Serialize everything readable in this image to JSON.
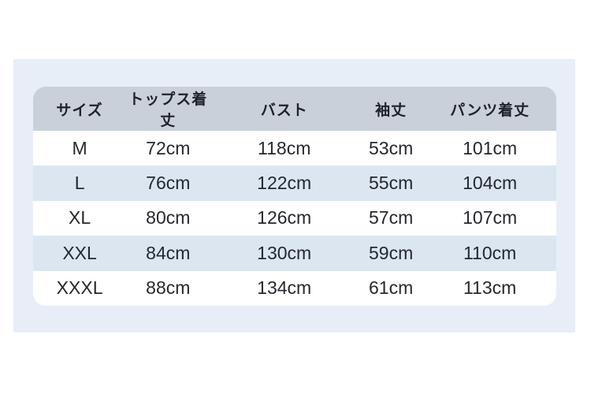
{
  "page": {
    "background_color": "#ffffff",
    "panel_color": "#e8eef7"
  },
  "size_chart": {
    "header_bg_color": "#c9d0da",
    "alt_row_color": "#dbe6f1",
    "text_color": "#25282e",
    "columns": [
      "サイズ",
      "トップス着丈",
      "バスト",
      "袖丈",
      "パンツ着丈"
    ],
    "rows": [
      [
        "M",
        "72cm",
        "118cm",
        "53cm",
        "101cm"
      ],
      [
        "L",
        "76cm",
        "122cm",
        "55cm",
        "104cm"
      ],
      [
        "XL",
        "80cm",
        "126cm",
        "57cm",
        "107cm"
      ],
      [
        "XXL",
        "84cm",
        "130cm",
        "59cm",
        "110cm"
      ],
      [
        "XXXL",
        "88cm",
        "134cm",
        "61cm",
        "113cm"
      ]
    ]
  },
  "chart_data": {
    "type": "table",
    "title": "",
    "columns": [
      "サイズ",
      "トップス着丈",
      "バスト",
      "袖丈",
      "パンツ着丈"
    ],
    "rows": [
      {
        "size": "M",
        "tops_length": "72cm",
        "bust": "118cm",
        "sleeve_length": "53cm",
        "pants_length": "101cm"
      },
      {
        "size": "L",
        "tops_length": "76cm",
        "bust": "122cm",
        "sleeve_length": "55cm",
        "pants_length": "104cm"
      },
      {
        "size": "XL",
        "tops_length": "80cm",
        "bust": "126cm",
        "sleeve_length": "57cm",
        "pants_length": "107cm"
      },
      {
        "size": "XXL",
        "tops_length": "84cm",
        "bust": "130cm",
        "sleeve_length": "59cm",
        "pants_length": "110cm"
      },
      {
        "size": "XXXL",
        "tops_length": "88cm",
        "bust": "134cm",
        "sleeve_length": "61cm",
        "pants_length": "113cm"
      }
    ],
    "layout": {
      "grid": false,
      "alternating_row_shading": true,
      "header_style": "rounded-top"
    }
  }
}
